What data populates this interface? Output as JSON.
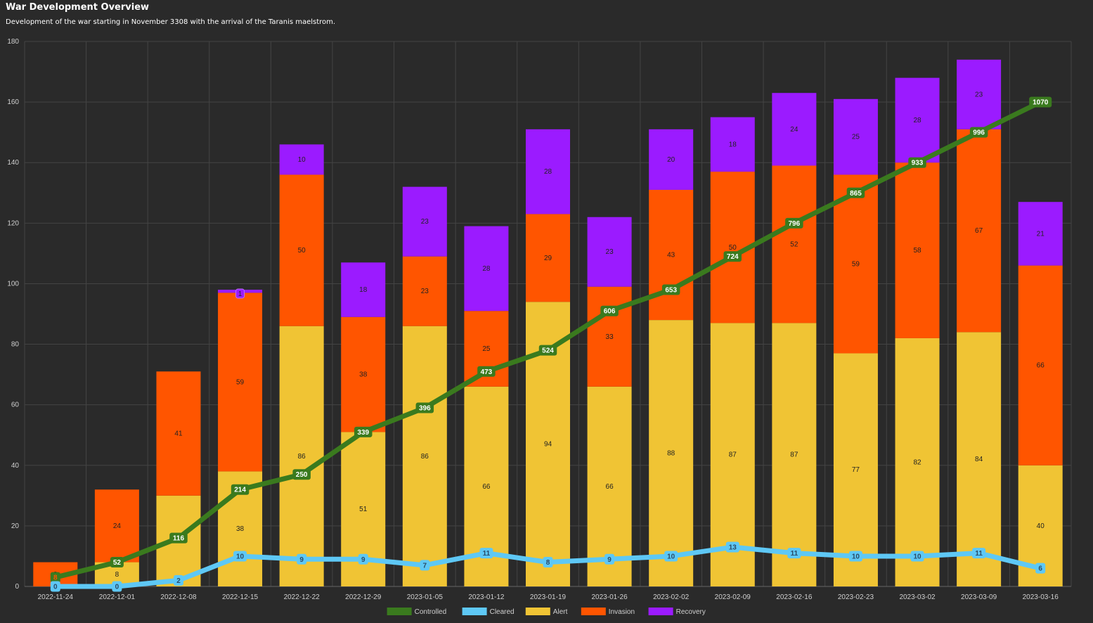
{
  "header": {
    "title": "War Development Overview",
    "subtitle": "Development of the war starting in November 3308 with the arrival of the Taranis maelstrom."
  },
  "chart_data": {
    "type": "bar",
    "stacked": true,
    "title": "War Development Overview",
    "subtitle": "Development of the war starting in November 3308 with the arrival of the Taranis maelstrom.",
    "ylim": [
      0,
      180
    ],
    "yticks": [
      0,
      20,
      40,
      60,
      80,
      100,
      120,
      140,
      160,
      180
    ],
    "grid": true,
    "legend_position": "bottom",
    "categories": [
      "2022-11-24",
      "2022-12-01",
      "2022-12-08",
      "2022-12-15",
      "2022-12-22",
      "2022-12-29",
      "2023-01-05",
      "2023-01-12",
      "2023-01-19",
      "2023-01-26",
      "2023-02-02",
      "2023-02-09",
      "2023-02-16",
      "2023-02-23",
      "2023-03-02",
      "2023-03-09",
      "2023-03-16"
    ],
    "bar_series": [
      {
        "name": "Alert",
        "color": "#f0c434",
        "values": [
          0,
          8,
          30,
          38,
          86,
          51,
          86,
          66,
          94,
          66,
          88,
          87,
          87,
          77,
          82,
          84,
          40
        ]
      },
      {
        "name": "Invasion",
        "color": "#ff5500",
        "values": [
          8,
          24,
          41,
          59,
          50,
          38,
          23,
          25,
          29,
          33,
          43,
          50,
          52,
          59,
          58,
          67,
          66
        ]
      },
      {
        "name": "Recovery",
        "color": "#9b1bff",
        "values": [
          0,
          0,
          0,
          1,
          10,
          18,
          23,
          28,
          28,
          23,
          20,
          18,
          24,
          25,
          28,
          23,
          21
        ]
      }
    ],
    "line_series": [
      {
        "name": "Controlled",
        "color": "#3a7a1e",
        "values": [
          8,
          52,
          116,
          214,
          250,
          339,
          396,
          473,
          524,
          606,
          653,
          724,
          796,
          865,
          933,
          996,
          1070
        ],
        "plot_values": [
          3,
          8,
          16,
          32,
          37,
          51,
          59,
          71,
          78,
          91,
          98,
          109,
          120,
          130,
          140,
          150,
          160
        ]
      },
      {
        "name": "Cleared",
        "color": "#5ec8f5",
        "values": [
          0,
          0,
          2,
          10,
          9,
          9,
          7,
          11,
          8,
          9,
          10,
          13,
          11,
          10,
          10,
          11,
          6
        ]
      }
    ],
    "legend": [
      "Controlled",
      "Cleared",
      "Alert",
      "Invasion",
      "Recovery"
    ]
  }
}
